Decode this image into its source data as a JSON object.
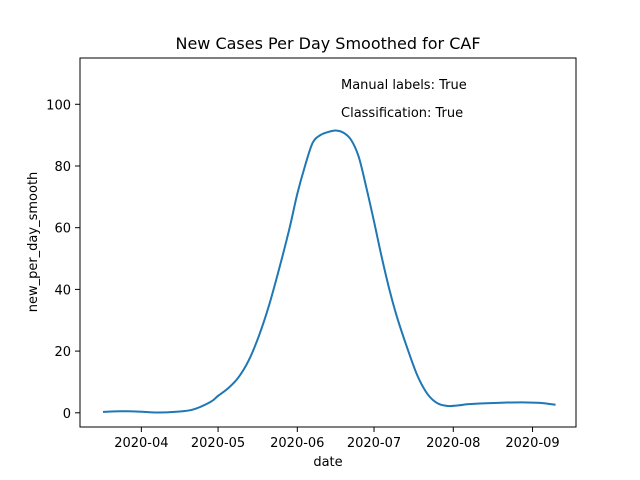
{
  "chart_data": {
    "type": "line",
    "title": "New Cases Per Day Smoothed for CAF",
    "xlabel": "date",
    "ylabel": "new_per_day_smooth",
    "xlim": [
      "2020-03-08",
      "2020-09-18"
    ],
    "ylim": [
      -4.6,
      115
    ],
    "grid": false,
    "line_color": "#1f77b4",
    "x_ticks": [
      "2020-04-01",
      "2020-05-01",
      "2020-06-01",
      "2020-07-01",
      "2020-08-01",
      "2020-09-01"
    ],
    "x_tick_labels": [
      "2020-04",
      "2020-05",
      "2020-06",
      "2020-07",
      "2020-08",
      "2020-09"
    ],
    "y_ticks": [
      0,
      20,
      40,
      60,
      80,
      100
    ],
    "y_tick_labels": [
      "0",
      "20",
      "40",
      "60",
      "80",
      "100"
    ],
    "annotations": [
      "Manual labels: True",
      "Classification: True"
    ],
    "series": [
      {
        "x": [
          "2020-03-17",
          "2020-03-24",
          "2020-03-31",
          "2020-04-07",
          "2020-04-14",
          "2020-04-21",
          "2020-04-28",
          "2020-05-01",
          "2020-05-05",
          "2020-05-09",
          "2020-05-13",
          "2020-05-17",
          "2020-05-21",
          "2020-05-25",
          "2020-05-29",
          "2020-06-01",
          "2020-06-04",
          "2020-06-07",
          "2020-06-10",
          "2020-06-13",
          "2020-06-16",
          "2020-06-19",
          "2020-06-22",
          "2020-06-25",
          "2020-06-28",
          "2020-07-01",
          "2020-07-04",
          "2020-07-07",
          "2020-07-10",
          "2020-07-14",
          "2020-07-18",
          "2020-07-22",
          "2020-07-26",
          "2020-07-30",
          "2020-08-03",
          "2020-08-07",
          "2020-08-14",
          "2020-08-21",
          "2020-08-28",
          "2020-09-04",
          "2020-09-10"
        ],
        "y": [
          0.3,
          0.5,
          0.4,
          0.1,
          0.3,
          1.0,
          3.5,
          5.5,
          8.0,
          11.5,
          17.0,
          25.0,
          35.0,
          47.0,
          60.0,
          71.0,
          80.0,
          87.5,
          90.0,
          91.0,
          91.5,
          90.8,
          88.5,
          83.0,
          73.0,
          62.0,
          50.5,
          40.0,
          31.0,
          21.0,
          12.0,
          6.0,
          3.0,
          2.2,
          2.4,
          2.8,
          3.1,
          3.3,
          3.4,
          3.2,
          2.6
        ]
      }
    ]
  }
}
